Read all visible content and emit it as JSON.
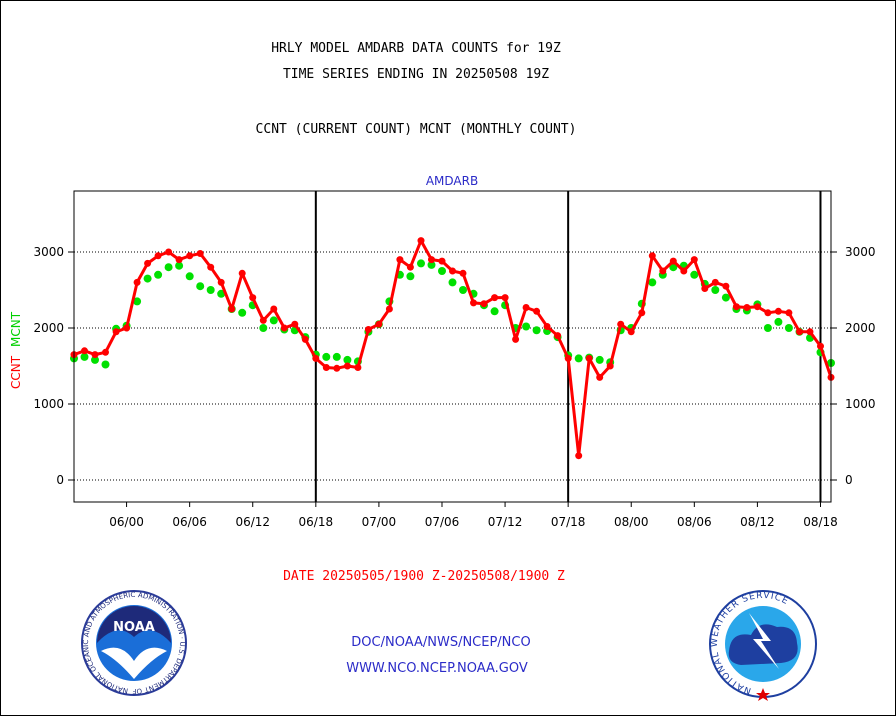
{
  "header": {
    "title_line1": "HRLY MODEL AMDARB DATA COUNTS for 19Z",
    "title_line2": "TIME SERIES ENDING IN 20250508 19Z",
    "legend_line": "CCNT (CURRENT COUNT) MCNT (MONTHLY COUNT)"
  },
  "chart_data": {
    "type": "line",
    "title": "AMDARB",
    "xlabel": "DATE 20250505/1900 Z-20250508/1900 Z",
    "ylabel_ccnt": "CCNT",
    "ylabel_mcnt": "MCNT",
    "ylim": [
      -300,
      3800
    ],
    "yticks": [
      0,
      1000,
      2000,
      3000
    ],
    "ytick_labels": [
      "0",
      "1000",
      "2000",
      "3000"
    ],
    "xtick_labels": [
      "06/00",
      "06/06",
      "06/12",
      "06/18",
      "07/00",
      "07/06",
      "07/12",
      "07/18",
      "08/00",
      "08/06",
      "08/12",
      "08/18"
    ],
    "grid": true,
    "series": [
      {
        "name": "CCNT",
        "color": "#ff0000",
        "values": [
          1650,
          1700,
          1650,
          1680,
          1950,
          2000,
          2600,
          2850,
          2950,
          3000,
          2900,
          2950,
          2980,
          2800,
          2600,
          2250,
          2720,
          2400,
          2100,
          2250,
          2000,
          2050,
          1850,
          1600,
          1480,
          1470,
          1500,
          1480,
          1980,
          2050,
          2250,
          2900,
          2800,
          3150,
          2900,
          2880,
          2750,
          2720,
          2330,
          2320,
          2400,
          2400,
          1850,
          2270,
          2220,
          2020,
          1900,
          1600,
          320,
          1600,
          1350,
          1500,
          2050,
          1950,
          2200,
          2950,
          2750,
          2880,
          2750,
          2900,
          2520,
          2600,
          2550,
          2280,
          2270,
          2280,
          2200,
          2220,
          2200,
          1950,
          1950,
          1760,
          1350
        ]
      },
      {
        "name": "MCNT",
        "color": "#00e000",
        "values": [
          1600,
          1620,
          1580,
          1520,
          1990,
          2030,
          2350,
          2650,
          2700,
          2800,
          2820,
          2680,
          2550,
          2500,
          2450,
          2250,
          2200,
          2300,
          2000,
          2100,
          1980,
          1970,
          1880,
          1650,
          1620,
          1620,
          1580,
          1560,
          1950,
          2050,
          2350,
          2700,
          2680,
          2850,
          2830,
          2750,
          2600,
          2500,
          2450,
          2300,
          2220,
          2300,
          2000,
          2020,
          1970,
          1960,
          1880,
          1640,
          1600,
          1610,
          1580,
          1550,
          1970,
          2000,
          2320,
          2600,
          2700,
          2800,
          2820,
          2700,
          2580,
          2500,
          2400,
          2250,
          2230,
          2310,
          2000,
          2080,
          2000,
          1950,
          1870,
          1680,
          1540
        ]
      }
    ]
  },
  "footer": {
    "link1": "DOC/NOAA/NWS/NCEP/NCO",
    "link2": "WWW.NCO.NCEP.NOAA.GOV",
    "noaa_logo_text": "NOAA",
    "noaa_ring_text": "NATIONAL OCEANIC AND ATMOSPHERIC ADMINISTRATION · U.S. DEPARTMENT OF COMMERCE ·",
    "nws_ring_text": "NATIONAL WEATHER SERVICE"
  }
}
